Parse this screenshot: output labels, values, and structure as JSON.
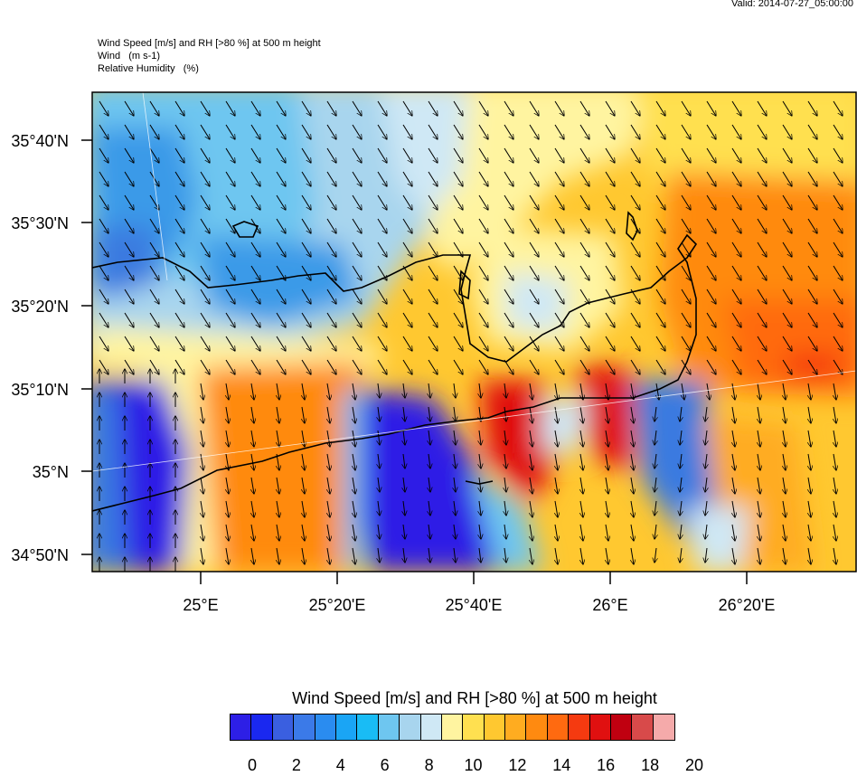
{
  "valid_time": "Valid: 2014-07-27_05:00:00",
  "header": {
    "line1": "Wind Speed [m/s] and RH [>80 %] at 500 m height",
    "line2": "Wind   (m s-1)",
    "line3": "Relative Humidity   (%)"
  },
  "lat_labels": [
    "35°40'N",
    "35°30'N",
    "35°20'N",
    "35°10'N",
    "35°N",
    "34°50'N"
  ],
  "lon_labels": [
    "25°E",
    "25°20'E",
    "25°40'E",
    "26°E",
    "26°20'E"
  ],
  "legend": {
    "title": "Wind Speed [m/s] and RH [>80 %] at 500 m height",
    "ticks": [
      "0",
      "2",
      "4",
      "6",
      "8",
      "10",
      "12",
      "14",
      "16",
      "18",
      "20"
    ],
    "colors": [
      "#7d2be0",
      "#2d1fe6",
      "#1a28f0",
      "#3a5fe0",
      "#3b7ae8",
      "#2a8cf0",
      "#1aa5f5",
      "#19bcf5",
      "#6ec6f0",
      "#a8d5ee",
      "#cfe8f5",
      "#fff4a0",
      "#ffe050",
      "#ffc830",
      "#ffac20",
      "#ff8a10",
      "#ff6a10",
      "#f53a10",
      "#e01010",
      "#c00010",
      "#d84a4a",
      "#f5aaaa"
    ]
  }
}
